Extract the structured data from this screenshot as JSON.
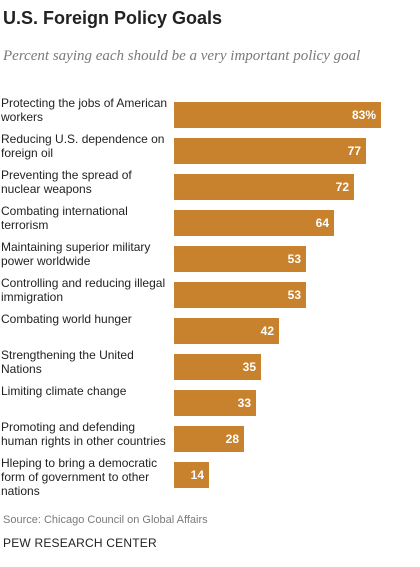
{
  "header": {
    "title": "U.S. Foreign Policy Goals",
    "subtitle": "Percent saying each should be a very important policy goal"
  },
  "footer": {
    "source": "Source: Chicago Council on Global Affairs",
    "brand": "PEW RESEARCH CENTER"
  },
  "chart_data": {
    "type": "bar",
    "orientation": "horizontal",
    "title": "U.S. Foreign Policy Goals",
    "subtitle": "Percent saying each should be a very important policy goal",
    "bar_color": "#c8812c",
    "label_color": "#ffffff",
    "xlim": [
      0,
      100
    ],
    "grid": false,
    "categories": [
      "Protecting the jobs of American workers",
      "Reducing U.S. dependence on foreign oil",
      "Preventing the spread of nuclear weapons",
      "Combating international terrorism",
      "Maintaining superior military power worldwide",
      "Controlling and reducing illegal immigration",
      "Combating world hunger",
      "Strengthening the United Nations",
      "Limiting climate change",
      "Promoting and defending human rights in other countries",
      "Hleping to bring a democratic form of government to other nations"
    ],
    "values": [
      83,
      77,
      72,
      64,
      53,
      53,
      42,
      35,
      33,
      28,
      14
    ],
    "value_labels": [
      "83%",
      "77",
      "72",
      "64",
      "53",
      "53",
      "42",
      "35",
      "33",
      "28",
      "14"
    ]
  }
}
